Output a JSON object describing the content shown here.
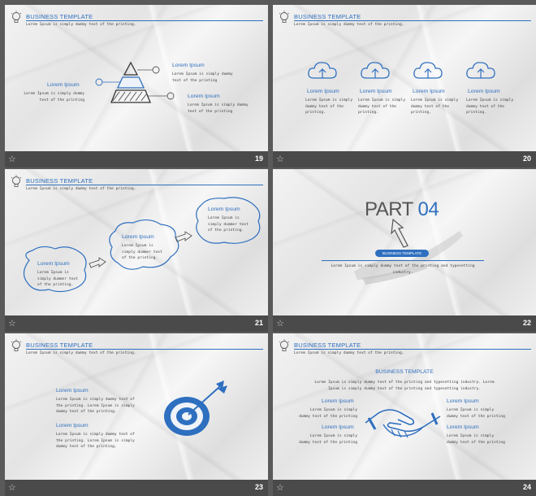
{
  "header": {
    "title": "BUSINESS TEMPLATE",
    "subtitle": "Lorem Ipsum is simply dummy text of the printing."
  },
  "slides": [
    {
      "number": "19",
      "labels": [
        "Lorem Ipsum",
        "Lorem Ipsum",
        "Lorem Ipsum"
      ],
      "texts": [
        "Lorem Ipsum is simply dummy text of the printing",
        "Lorem Ipsum is simply dummy text of the printing",
        "Lorem Ipsum is simply dummy text of the printing"
      ]
    },
    {
      "number": "20",
      "labels": [
        "Lorem Ipsum",
        "Lorem Ipsum",
        "Lorem Ipsum",
        "Lorem Ipsum"
      ],
      "texts": [
        "Lorem Ipsum is simply dummy text of the printing.",
        "Lorem Ipsum is simply dummy text of the printing.",
        "Lorem Ipsum is simply dummy text of the printing.",
        "Lorem Ipsum is simply dummy text of the printing."
      ]
    },
    {
      "number": "21",
      "labels": [
        "Lorem Ipsum",
        "Lorem Ipsum",
        "Lorem Ipsum"
      ],
      "texts": [
        "Lorem Ipsum is simply dummer text of the printing.",
        "Lorem Ipsum is simply dummer text of the printing.",
        "Lorem Ipsum is simply dummer text of the printing."
      ]
    },
    {
      "number": "22",
      "part_word": "PART",
      "part_num": "04",
      "pill": "BUSINESS TEMPLATE",
      "body": "Lorem Ipsum is simply dummy text of the printing and typesetting industry."
    },
    {
      "number": "23",
      "labels": [
        "Lorem Ipsum",
        "Lorem Ipsum"
      ],
      "texts": [
        "Lorem Ipsum is simply dummy text of the printing. Lorem Ipsum is simply dummy text of the printing.",
        "Lorem Ipsum is simply dummy text of the printing. Lorem Ipsum is simply dummy text of the printing."
      ]
    },
    {
      "number": "24",
      "intro": "Lorem Ipsum is simply dummy text of the printing and typesetting industry. Lorem Ipsum is simply dummy text of the printing and typesetting industry.",
      "labels": [
        "Lorem Ipsum",
        "Lorem Ipsum",
        "Lorem Ipsum",
        "Lorem Ipsum"
      ],
      "texts": [
        "Lorem Ipsum is simply dummy text of the printing",
        "Lorem Ipsum is simply dummy text of the printing",
        "Lorem Ipsum is simply dummy text of the printing",
        "Lorem Ipsum is simply dummy text of the printing"
      ]
    }
  ],
  "colors": {
    "accent": "#2e6fbf",
    "background": "#5a5a5a",
    "bar": "#4a4a4a"
  },
  "icons": {
    "bar": "star-icon",
    "header": "lightbulb-icon"
  }
}
